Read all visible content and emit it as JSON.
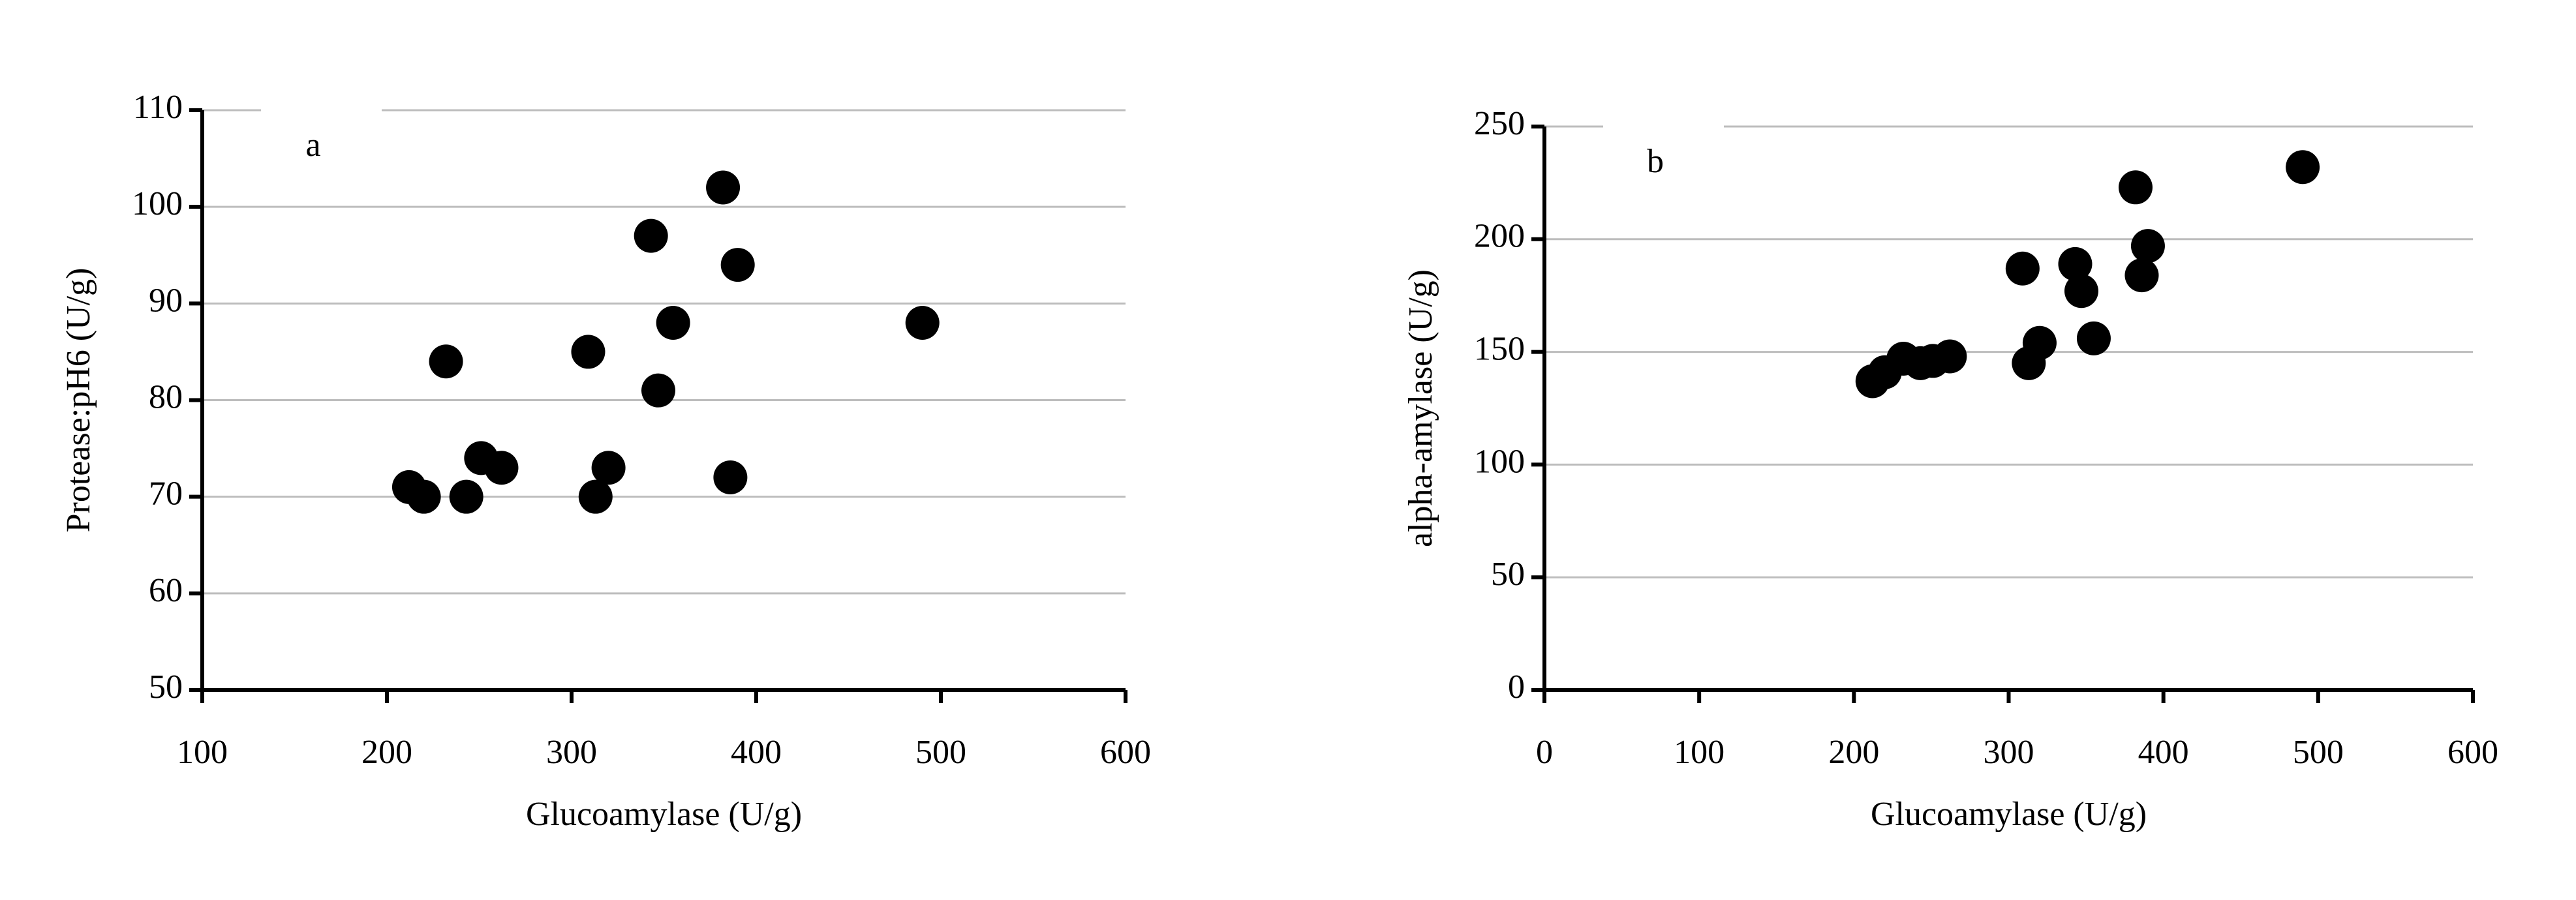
{
  "chart_data": [
    {
      "type": "scatter",
      "label": "a",
      "x_label": "Glucoamylase (U/g)",
      "y_label": "Protease:pH6 (U/g)",
      "x": [
        212,
        220,
        232,
        243,
        251,
        262,
        309,
        313,
        320,
        343,
        347,
        355,
        382,
        386,
        390,
        490
      ],
      "values": [
        71,
        70,
        84,
        70,
        74,
        73,
        85,
        70,
        73,
        97,
        81,
        88,
        102,
        72,
        94,
        88
      ],
      "color": "#000000",
      "xlim": [
        100,
        600
      ],
      "xticks": [
        100,
        200,
        300,
        400,
        500,
        600
      ],
      "ylim": [
        50,
        110
      ],
      "yticks": [
        50,
        60,
        70,
        80,
        90,
        100,
        110
      ],
      "grid": true
    },
    {
      "type": "scatter",
      "label": "b",
      "x_label": "Glucoamylase (U/g)",
      "y_label": "alpha-amylase (U/g)",
      "x": [
        212,
        220,
        232,
        243,
        251,
        262,
        309,
        313,
        320,
        343,
        347,
        355,
        382,
        386,
        390,
        490
      ],
      "values": [
        137,
        141,
        147,
        145,
        146,
        148,
        187,
        145,
        154,
        189,
        177,
        156,
        223,
        184,
        197,
        232
      ],
      "color": "#000000",
      "xlim": [
        0,
        600
      ],
      "xticks": [
        0,
        100,
        200,
        300,
        400,
        500,
        600
      ],
      "ylim": [
        0,
        250
      ],
      "yticks": [
        0,
        50,
        100,
        150,
        200,
        250
      ],
      "grid": true
    }
  ]
}
